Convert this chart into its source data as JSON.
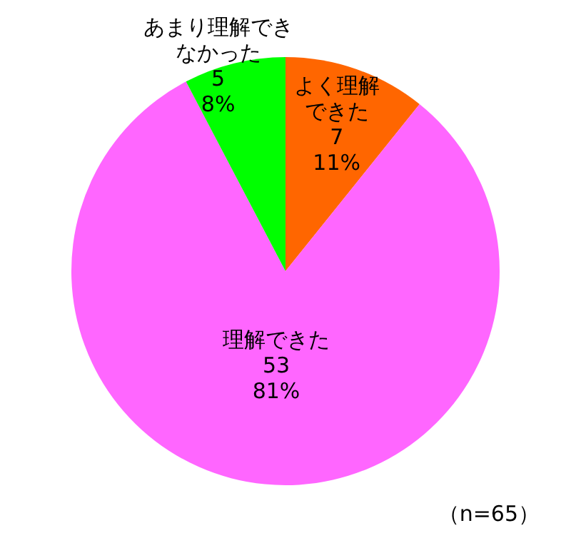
{
  "chart_data": {
    "type": "pie",
    "categories": [
      "よく理解できた",
      "理解できた",
      "あまり理解できなかった"
    ],
    "values": [
      7,
      53,
      5
    ],
    "value_labels": [
      "7\n11%",
      "53\n81%",
      "5\n8%"
    ],
    "colors": [
      "#ff6600",
      "#ff66ff",
      "#00ff00"
    ],
    "legend": false,
    "annotations": [
      "（n=65）"
    ]
  }
}
